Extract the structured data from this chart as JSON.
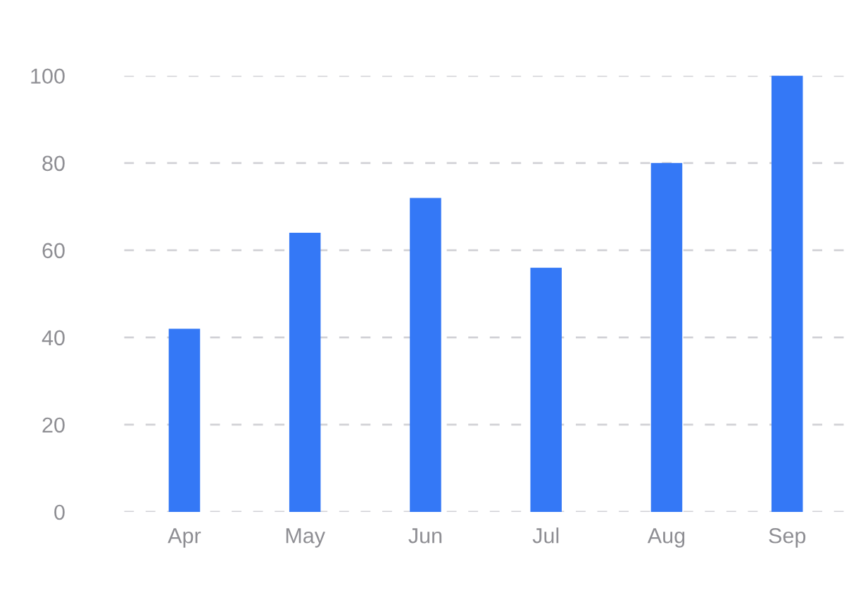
{
  "chart_data": {
    "type": "bar",
    "categories": [
      "Apr",
      "May",
      "Jun",
      "Jul",
      "Aug",
      "Sep"
    ],
    "values": [
      42,
      64,
      72,
      56,
      80,
      100
    ],
    "color": "#3478f6",
    "ylim": [
      0,
      100
    ],
    "yticks": [
      0,
      20,
      40,
      60,
      80,
      100
    ],
    "grid": "y"
  }
}
